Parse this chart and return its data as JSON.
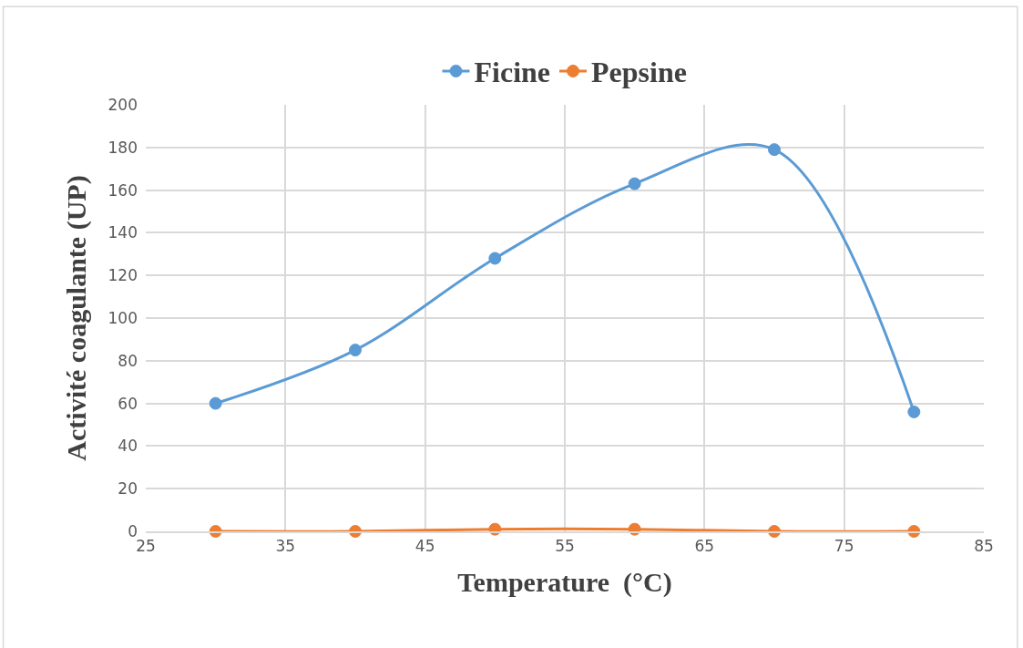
{
  "chart_data": {
    "type": "line",
    "xlabel": "Temperature  (°C)",
    "ylabel": "Activité coagulante (UP)",
    "x": [
      30,
      40,
      50,
      60,
      70,
      80
    ],
    "series": [
      {
        "name": "Ficine",
        "color": "#5b9bd5",
        "values": [
          60,
          85,
          128,
          163,
          179,
          56
        ]
      },
      {
        "name": "Pepsine",
        "color": "#ed7d31",
        "values": [
          0,
          0,
          1,
          1,
          0,
          0
        ]
      }
    ],
    "xlim": [
      25,
      85
    ],
    "xticks": [
      25,
      35,
      45,
      55,
      65,
      75,
      85
    ],
    "ylim": [
      0,
      200
    ],
    "yticks": [
      0,
      20,
      40,
      60,
      80,
      100,
      120,
      140,
      160,
      180,
      200
    ],
    "grid": true,
    "legend": "top",
    "marker": "circle",
    "line_style": "solid"
  }
}
